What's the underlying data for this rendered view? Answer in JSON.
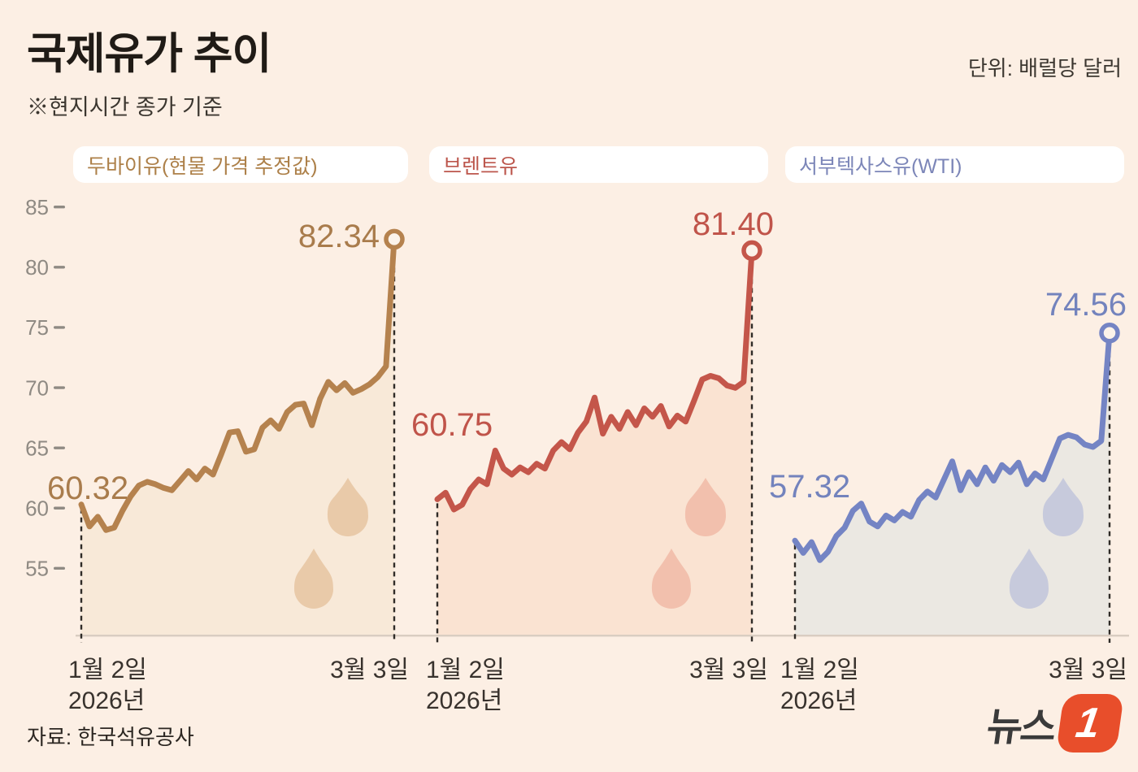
{
  "header": {
    "title": "국제유가 추이",
    "subtitle": "※현지시간 종가 기준",
    "unit": "단위: 배럴당 달러"
  },
  "legend": {
    "items": [
      {
        "label": "두바이유(현물 가격 추정값)",
        "color": "#ad8049"
      },
      {
        "label": "브렌트유",
        "color": "#bc564c"
      },
      {
        "label": "서부텍사스유(WTI)",
        "color": "#7c86b8"
      }
    ]
  },
  "source": {
    "label": "자료: 한국석유공사"
  },
  "logo": {
    "text": "뉴스",
    "badge": "1"
  },
  "chart_data": {
    "type": "area",
    "title": "국제유가 추이",
    "unit": "배럴당 달러",
    "x_range_labels": {
      "start_line1": "1월 2일",
      "start_line2": "2026년",
      "end": "3월 3일"
    },
    "y_axis": {
      "ticks": [
        85,
        80,
        75,
        70,
        65,
        60,
        55
      ],
      "ylim": [
        55,
        85
      ]
    },
    "series": [
      {
        "id": "dubai-oil",
        "name": "두바이유(현물 가격 추정값)",
        "start_value": 60.32,
        "end_value": 82.34,
        "start_label": "60.32",
        "end_label": "82.34",
        "line_color": "#b5824e",
        "fill_color": "#f8e9d8",
        "drop_color": "#e9caa9",
        "label_color": "#a97c4c",
        "values": [
          60.32,
          58.5,
          59.3,
          58.2,
          58.4,
          59.8,
          61.0,
          61.9,
          62.2,
          62.0,
          61.7,
          61.5,
          62.3,
          63.1,
          62.4,
          63.3,
          62.8,
          64.5,
          66.3,
          66.4,
          64.7,
          64.9,
          66.7,
          67.3,
          66.6,
          68.0,
          68.6,
          68.7,
          66.9,
          69.1,
          70.5,
          69.8,
          70.4,
          69.6,
          69.9,
          70.3,
          70.9,
          71.8,
          82.34
        ]
      },
      {
        "id": "brent-oil",
        "name": "브렌트유",
        "start_value": 60.75,
        "end_value": 81.4,
        "start_label": "60.75",
        "end_label": "81.40",
        "line_color": "#c4564a",
        "fill_color": "#fae3d2",
        "drop_color": "#f2c0ad",
        "label_color": "#c0544a",
        "values": [
          60.75,
          61.3,
          59.9,
          60.3,
          61.6,
          62.4,
          62.0,
          64.8,
          63.3,
          62.8,
          63.4,
          63.0,
          63.7,
          63.3,
          64.8,
          65.5,
          64.9,
          66.3,
          67.2,
          69.2,
          66.2,
          67.6,
          66.6,
          68.0,
          66.9,
          68.3,
          67.6,
          68.5,
          66.8,
          67.7,
          67.2,
          68.9,
          70.7,
          71.0,
          70.8,
          70.2,
          70.0,
          70.5,
          81.4
        ]
      },
      {
        "id": "wti-oil",
        "name": "서부텍사스유(WTI)",
        "start_value": 57.32,
        "end_value": 74.56,
        "start_label": "57.32",
        "end_label": "74.56",
        "line_color": "#7484c4",
        "fill_color": "#ebe8e2",
        "drop_color": "#c7cadc",
        "label_color": "#7383bd",
        "values": [
          57.32,
          56.3,
          57.2,
          55.7,
          56.4,
          57.7,
          58.4,
          59.8,
          60.4,
          58.9,
          58.5,
          59.4,
          59.0,
          59.7,
          59.3,
          60.7,
          61.4,
          60.9,
          62.4,
          63.9,
          61.5,
          63.0,
          62.0,
          63.4,
          62.3,
          63.6,
          63.0,
          63.8,
          62.0,
          62.9,
          62.4,
          64.1,
          65.8,
          66.1,
          65.9,
          65.3,
          65.1,
          65.6,
          74.56
        ]
      }
    ]
  }
}
